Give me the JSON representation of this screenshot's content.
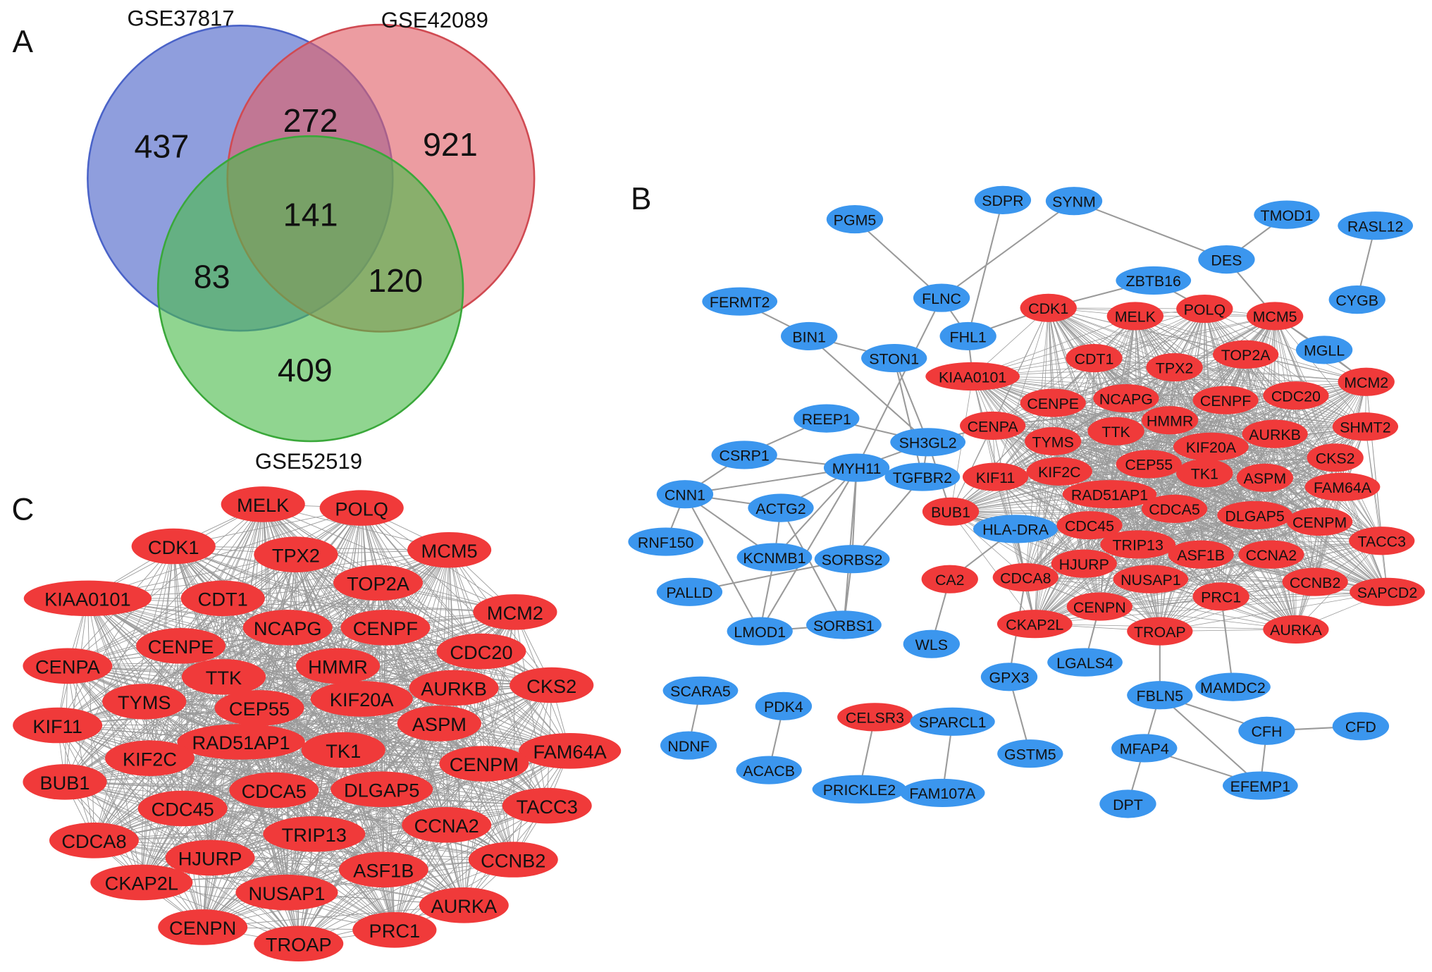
{
  "panels": {
    "a": "A",
    "b": "B",
    "c": "C"
  },
  "colors": {
    "set1": "#4a63c8",
    "set2": "#e06068",
    "set3": "#4cbb4c",
    "upregulated": "#f03a3a",
    "downregulated": "#3b96ee",
    "edge": "#9a9a9a"
  },
  "venn": {
    "sets": [
      "GSE37817",
      "GSE42089",
      "GSE52519"
    ],
    "regions": {
      "only_1": "437",
      "only_2": "921",
      "only_3": "409",
      "1_2": "272",
      "1_3": "83",
      "2_3": "120",
      "all": "141"
    }
  },
  "network_b": {
    "nodes": [
      {
        "label": "SDPR",
        "type": "down"
      },
      {
        "label": "SYNM",
        "type": "down"
      },
      {
        "label": "PGM5",
        "type": "down"
      },
      {
        "label": "TMOD1",
        "type": "down"
      },
      {
        "label": "RASL12",
        "type": "down"
      },
      {
        "label": "DES",
        "type": "down"
      },
      {
        "label": "ZBTB16",
        "type": "down"
      },
      {
        "label": "FLNC",
        "type": "down"
      },
      {
        "label": "FERMT2",
        "type": "down"
      },
      {
        "label": "CYGB",
        "type": "down"
      },
      {
        "label": "CDK1",
        "type": "up"
      },
      {
        "label": "MELK",
        "type": "up"
      },
      {
        "label": "POLQ",
        "type": "up"
      },
      {
        "label": "MCM5",
        "type": "up"
      },
      {
        "label": "BIN1",
        "type": "down"
      },
      {
        "label": "FHL1",
        "type": "down"
      },
      {
        "label": "MGLL",
        "type": "down"
      },
      {
        "label": "STON1",
        "type": "down"
      },
      {
        "label": "CDT1",
        "type": "up"
      },
      {
        "label": "TPX2",
        "type": "up"
      },
      {
        "label": "TOP2A",
        "type": "up"
      },
      {
        "label": "KIAA0101",
        "type": "up"
      },
      {
        "label": "MCM2",
        "type": "up"
      },
      {
        "label": "CENPE",
        "type": "up"
      },
      {
        "label": "NCAPG",
        "type": "up"
      },
      {
        "label": "CENPF",
        "type": "up"
      },
      {
        "label": "CDC20",
        "type": "up"
      },
      {
        "label": "REEP1",
        "type": "down"
      },
      {
        "label": "CENPA",
        "type": "up"
      },
      {
        "label": "HMMR",
        "type": "up"
      },
      {
        "label": "TTK",
        "type": "up"
      },
      {
        "label": "SHMT2",
        "type": "up"
      },
      {
        "label": "SH3GL2",
        "type": "down"
      },
      {
        "label": "TYMS",
        "type": "up"
      },
      {
        "label": "AURKB",
        "type": "up"
      },
      {
        "label": "KIF20A",
        "type": "up"
      },
      {
        "label": "CKS2",
        "type": "up"
      },
      {
        "label": "CSRP1",
        "type": "down"
      },
      {
        "label": "CEP55",
        "type": "up"
      },
      {
        "label": "MYH11",
        "type": "down"
      },
      {
        "label": "TK1",
        "type": "up"
      },
      {
        "label": "ASPM",
        "type": "up"
      },
      {
        "label": "TGFBR2",
        "type": "down"
      },
      {
        "label": "KIF11",
        "type": "up"
      },
      {
        "label": "KIF2C",
        "type": "up"
      },
      {
        "label": "FAM64A",
        "type": "up"
      },
      {
        "label": "CNN1",
        "type": "down"
      },
      {
        "label": "RAD51AP1",
        "type": "up"
      },
      {
        "label": "ACTG2",
        "type": "down"
      },
      {
        "label": "BUB1",
        "type": "up"
      },
      {
        "label": "CDCA5",
        "type": "up"
      },
      {
        "label": "DLGAP5",
        "type": "up"
      },
      {
        "label": "CENPM",
        "type": "up"
      },
      {
        "label": "HLA-DRA",
        "type": "down"
      },
      {
        "label": "CDC45",
        "type": "up"
      },
      {
        "label": "TRIP13",
        "type": "up"
      },
      {
        "label": "TACC3",
        "type": "up"
      },
      {
        "label": "RNF150",
        "type": "down"
      },
      {
        "label": "KCNMB1",
        "type": "down"
      },
      {
        "label": "SORBS2",
        "type": "down"
      },
      {
        "label": "ASF1B",
        "type": "up"
      },
      {
        "label": "CCNA2",
        "type": "up"
      },
      {
        "label": "HJURP",
        "type": "up"
      },
      {
        "label": "CA2",
        "type": "up"
      },
      {
        "label": "CDCA8",
        "type": "up"
      },
      {
        "label": "NUSAP1",
        "type": "up"
      },
      {
        "label": "CCNB2",
        "type": "up"
      },
      {
        "label": "PALLD",
        "type": "down"
      },
      {
        "label": "PRC1",
        "type": "up"
      },
      {
        "label": "SAPCD2",
        "type": "up"
      },
      {
        "label": "CENPN",
        "type": "up"
      },
      {
        "label": "CKAP2L",
        "type": "up"
      },
      {
        "label": "TROAP",
        "type": "up"
      },
      {
        "label": "AURKA",
        "type": "up"
      },
      {
        "label": "SORBS1",
        "type": "down"
      },
      {
        "label": "LMOD1",
        "type": "down"
      },
      {
        "label": "WLS",
        "type": "down"
      },
      {
        "label": "LGALS4",
        "type": "down"
      },
      {
        "label": "GPX3",
        "type": "down"
      },
      {
        "label": "MAMDC2",
        "type": "down"
      },
      {
        "label": "SCARA5",
        "type": "down"
      },
      {
        "label": "FBLN5",
        "type": "down"
      },
      {
        "label": "PDK4",
        "type": "down"
      },
      {
        "label": "CELSR3",
        "type": "up"
      },
      {
        "label": "SPARCL1",
        "type": "down"
      },
      {
        "label": "CFH",
        "type": "down"
      },
      {
        "label": "CFD",
        "type": "down"
      },
      {
        "label": "NDNF",
        "type": "down"
      },
      {
        "label": "MFAP4",
        "type": "down"
      },
      {
        "label": "GSTM5",
        "type": "down"
      },
      {
        "label": "ACACB",
        "type": "down"
      },
      {
        "label": "PRICKLE2",
        "type": "down"
      },
      {
        "label": "FAM107A",
        "type": "down"
      },
      {
        "label": "EFEMP1",
        "type": "down"
      },
      {
        "label": "DPT",
        "type": "down"
      }
    ],
    "edges": [
      [
        "PGM5",
        "FLNC"
      ],
      [
        "SYNM",
        "FLNC"
      ],
      [
        "SYNM",
        "DES"
      ],
      [
        "SDPR",
        "FHL1"
      ],
      [
        "TMOD1",
        "DES"
      ],
      [
        "RASL12",
        "CYGB"
      ],
      [
        "DES",
        "MCM5"
      ],
      [
        "ZBTB16",
        "CDK1"
      ],
      [
        "ZBTB16",
        "POLQ"
      ],
      [
        "FLNC",
        "FHL1"
      ],
      [
        "FLNC",
        "MYH11"
      ],
      [
        "FERMT2",
        "BIN1"
      ],
      [
        "BIN1",
        "STON1"
      ],
      [
        "BIN1",
        "SH3GL2"
      ],
      [
        "STON1",
        "SH3GL2"
      ],
      [
        "STON1",
        "TGFBR2"
      ],
      [
        "FHL1",
        "KIAA0101"
      ],
      [
        "FHL1",
        "CDK1"
      ],
      [
        "MGLL",
        "MCM5"
      ],
      [
        "MGLL",
        "MCM2"
      ],
      [
        "REEP1",
        "CSRP1"
      ],
      [
        "REEP1",
        "SH3GL2"
      ],
      [
        "SH3GL2",
        "MYH11"
      ],
      [
        "SH3GL2",
        "CENPA"
      ],
      [
        "SH3GL2",
        "BUB1"
      ],
      [
        "TGFBR2",
        "SH3GL2"
      ],
      [
        "TGFBR2",
        "SORBS2"
      ],
      [
        "CSRP1",
        "MYH11"
      ],
      [
        "CSRP1",
        "CNN1"
      ],
      [
        "CNN1",
        "MYH11"
      ],
      [
        "CNN1",
        "ACTG2"
      ],
      [
        "CNN1",
        "RNF150"
      ],
      [
        "CNN1",
        "KCNMB1"
      ],
      [
        "CNN1",
        "LMOD1"
      ],
      [
        "ACTG2",
        "MYH11"
      ],
      [
        "ACTG2",
        "KCNMB1"
      ],
      [
        "ACTG2",
        "SORBS1"
      ],
      [
        "MYH11",
        "KCNMB1"
      ],
      [
        "MYH11",
        "SORBS2"
      ],
      [
        "MYH11",
        "LMOD1"
      ],
      [
        "MYH11",
        "SORBS1"
      ],
      [
        "KCNMB1",
        "LMOD1"
      ],
      [
        "SORBS2",
        "PALLD"
      ],
      [
        "SORBS2",
        "SORBS1"
      ],
      [
        "LMOD1",
        "SORBS1"
      ],
      [
        "CA2",
        "HLA-DRA"
      ],
      [
        "CA2",
        "WLS"
      ],
      [
        "HLA-DRA",
        "BUB1"
      ],
      [
        "HLA-DRA",
        "CKAP2L"
      ],
      [
        "GPX3",
        "CDCA8"
      ],
      [
        "GPX3",
        "GSTM5"
      ],
      [
        "LGALS4",
        "CENPN"
      ],
      [
        "TROAP",
        "FBLN5"
      ],
      [
        "PRC1",
        "MAMDC2"
      ],
      [
        "FBLN5",
        "CFH"
      ],
      [
        "FBLN5",
        "MFAP4"
      ],
      [
        "FBLN5",
        "EFEMP1"
      ],
      [
        "CFH",
        "CFD"
      ],
      [
        "CFH",
        "EFEMP1"
      ],
      [
        "MFAP4",
        "EFEMP1"
      ],
      [
        "MFAP4",
        "DPT"
      ],
      [
        "SCARA5",
        "NDNF"
      ],
      [
        "PDK4",
        "ACACB"
      ],
      [
        "CELSR3",
        "PRICKLE2"
      ],
      [
        "SPARCL1",
        "FAM107A"
      ]
    ]
  },
  "network_c": {
    "nodes": [
      "MELK",
      "POLQ",
      "CDK1",
      "TPX2",
      "MCM5",
      "TOP2A",
      "KIAA0101",
      "CDT1",
      "MCM2",
      "NCAPG",
      "CENPF",
      "CENPE",
      "CDC20",
      "CENPA",
      "HMMR",
      "TTK",
      "AURKB",
      "CKS2",
      "TYMS",
      "CEP55",
      "KIF20A",
      "ASPM",
      "KIF11",
      "RAD51AP1",
      "TK1",
      "FAM64A",
      "KIF2C",
      "CENPM",
      "BUB1",
      "CDCA5",
      "DLGAP5",
      "CDC45",
      "TACC3",
      "CCNA2",
      "TRIP13",
      "CDCA8",
      "CCNB2",
      "HJURP",
      "ASF1B",
      "CKAP2L",
      "NUSAP1",
      "AURKA",
      "CENPN",
      "PRC1",
      "TROAP"
    ]
  }
}
